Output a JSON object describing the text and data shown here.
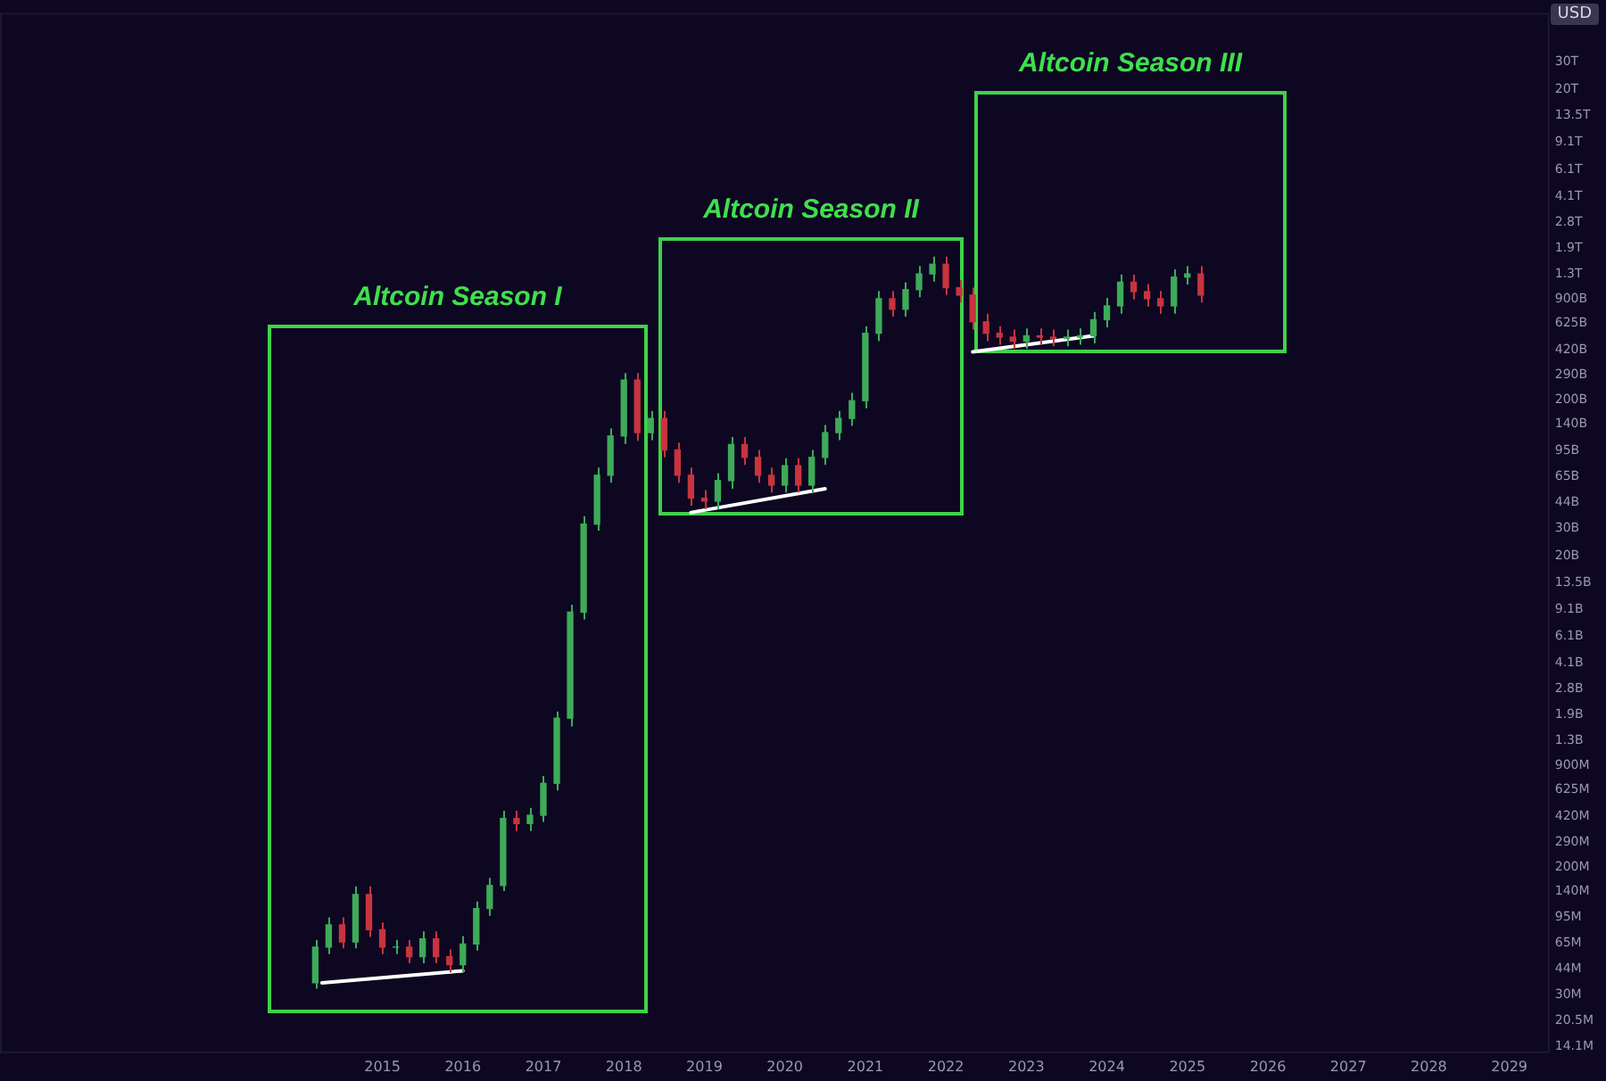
{
  "chart_data": {
    "type": "candlestick",
    "ylabel": "USD",
    "log": "y",
    "x": [
      "2014-03",
      "2014-05",
      "2014-07",
      "2014-09",
      "2014-11",
      "2015-01",
      "2015-03",
      "2015-05",
      "2015-07",
      "2015-09",
      "2015-11",
      "2016-01",
      "2016-03",
      "2016-05",
      "2016-07",
      "2016-09",
      "2016-11",
      "2017-01",
      "2017-03",
      "2017-05",
      "2017-07",
      "2017-09",
      "2017-11",
      "2018-01",
      "2018-03",
      "2018-05",
      "2018-07",
      "2018-09",
      "2018-11",
      "2019-01",
      "2019-03",
      "2019-05",
      "2019-07",
      "2019-09",
      "2019-11",
      "2020-01",
      "2020-03",
      "2020-05",
      "2020-07",
      "2020-09",
      "2020-11",
      "2021-01",
      "2021-03",
      "2021-05",
      "2021-07",
      "2021-09",
      "2021-11",
      "2022-01",
      "2022-03",
      "2022-05",
      "2022-07",
      "2022-09",
      "2022-11",
      "2023-01",
      "2023-03",
      "2023-05",
      "2023-07",
      "2023-09",
      "2023-11",
      "2024-01",
      "2024-03",
      "2024-05",
      "2024-07",
      "2024-09",
      "2024-11",
      "2025-01",
      "2025-03"
    ],
    "ohlc": [
      [
        36000000.0,
        68000000.0,
        33000000.0,
        61000000.0
      ],
      [
        61000000.0,
        95000000.0,
        55000000.0,
        85000000.0
      ],
      [
        85000000.0,
        95000000.0,
        60000000.0,
        66000000.0
      ],
      [
        66000000.0,
        150000000.0,
        60000000.0,
        133000000.0
      ],
      [
        133000000.0,
        150000000.0,
        71000000.0,
        79000000.0
      ],
      [
        79000000.0,
        88000000.0,
        55000000.0,
        61000000.0
      ],
      [
        61000000.0,
        68000000.0,
        55000000.0,
        61000000.0
      ],
      [
        61000000.0,
        68000000.0,
        48000000.0,
        53000000.0
      ],
      [
        53000000.0,
        77000000.0,
        48000000.0,
        69000000.0
      ],
      [
        69000000.0,
        77000000.0,
        48000000.0,
        53000000.0
      ],
      [
        53000000.0,
        59000000.0,
        42000000.0,
        47000000.0
      ],
      [
        47000000.0,
        72000000.0,
        42000000.0,
        64000000.0
      ],
      [
        64000000.0,
        120000000.0,
        58000000.0,
        108000000.0
      ],
      [
        108000000.0,
        170000000.0,
        97000000.0,
        152000000.0
      ],
      [
        152000000.0,
        460000000.0,
        140000000.0,
        410000000.0
      ],
      [
        410000000.0,
        460000000.0,
        340000000.0,
        380000000.0
      ],
      [
        380000000.0,
        480000000.0,
        340000000.0,
        430000000.0
      ],
      [
        430000000.0,
        770000000.0,
        390000000.0,
        690000000.0
      ],
      [
        690000000.0,
        2000000000.0,
        620000000.0,
        1810000000.0
      ],
      [
        1810000000.0,
        9700000000.0,
        1600000000.0,
        8700000000.0
      ],
      [
        8700000000.0,
        36000000000.0,
        7800000000.0,
        32000000000.0
      ],
      [
        32000000000.0,
        74000000000.0,
        29000000000.0,
        66000000000.0
      ],
      [
        66000000000.0,
        132000000000.0,
        59000000000.0,
        118000000000.0
      ],
      [
        118000000000.0,
        300000000000.0,
        105000000000.0,
        270000000000.0
      ],
      [
        270000000000.0,
        300000000000.0,
        110000000000.0,
        124000000000.0
      ],
      [
        124000000000.0,
        171000000000.0,
        111000000000.0,
        153000000000.0
      ],
      [
        153000000000.0,
        171000000000.0,
        86000000000.0,
        96000000000.0
      ],
      [
        96000000000.0,
        107000000000.0,
        59000000000.0,
        66000000000.0
      ],
      [
        66000000000.0,
        74000000000.0,
        42000000000.0,
        47000000000.0
      ],
      [
        47000000000.0,
        53000000000.0,
        40000000000.0,
        45000000000.0
      ],
      [
        45000000000.0,
        68000000000.0,
        40000000000.0,
        61000000000.0
      ],
      [
        61000000000.0,
        116000000000.0,
        54000000000.0,
        104000000000.0
      ],
      [
        104000000000.0,
        116000000000.0,
        77000000000.0,
        86000000000.0
      ],
      [
        86000000000.0,
        96000000000.0,
        59000000000.0,
        66000000000.0
      ],
      [
        66000000000.0,
        74000000000.0,
        51000000000.0,
        57000000000.0
      ],
      [
        57000000000.0,
        85000000000.0,
        51000000000.0,
        76000000000.0
      ],
      [
        76000000000.0,
        85000000000.0,
        51000000000.0,
        57000000000.0
      ],
      [
        57000000000.0,
        96000000000.0,
        51000000000.0,
        86000000000.0
      ],
      [
        86000000000.0,
        139000000000.0,
        77000000000.0,
        124000000000.0
      ],
      [
        124000000000.0,
        171000000000.0,
        111000000000.0,
        153000000000.0
      ],
      [
        153000000000.0,
        223000000000.0,
        137000000000.0,
        199000000000.0
      ],
      [
        199000000000.0,
        600000000000.0,
        178000000000.0,
        540000000000.0
      ],
      [
        540000000000.0,
        1010000000000.0,
        480000000000.0,
        900000000000.0
      ],
      [
        900000000000.0,
        1010000000000.0,
        690000000000.0,
        770000000000.0
      ],
      [
        770000000000.0,
        1150000000000.0,
        690000000000.0,
        1030000000000.0
      ],
      [
        1030000000000.0,
        1460000000000.0,
        920000000000.0,
        1300000000000.0
      ],
      [
        1300000000000.0,
        1680000000000.0,
        1160000000000.0,
        1500000000000.0
      ],
      [
        1500000000000.0,
        1680000000000.0,
        950000000000.0,
        1060000000000.0
      ],
      [
        1060000000000.0,
        1190000000000.0,
        850000000000.0,
        950000000000.0
      ],
      [
        950000000000.0,
        1060000000000.0,
        570000000000.0,
        640000000000.0
      ],
      [
        640000000000.0,
        720000000000.0,
        480000000000.0,
        540000000000.0
      ],
      [
        540000000000.0,
        600000000000.0,
        455000000000.0,
        510000000000.0
      ],
      [
        510000000000.0,
        570000000000.0,
        430000000000.0,
        480000000000.0
      ],
      [
        480000000000.0,
        580000000000.0,
        430000000000.0,
        520000000000.0
      ],
      [
        520000000000.0,
        580000000000.0,
        455000000000.0,
        510000000000.0
      ],
      [
        510000000000.0,
        570000000000.0,
        445000000000.0,
        500000000000.0
      ],
      [
        500000000000.0,
        570000000000.0,
        445000000000.0,
        510000000000.0
      ],
      [
        510000000000.0,
        580000000000.0,
        455000000000.0,
        520000000000.0
      ],
      [
        520000000000.0,
        740000000000.0,
        465000000000.0,
        660000000000.0
      ],
      [
        660000000000.0,
        910000000000.0,
        590000000000.0,
        810000000000.0
      ],
      [
        810000000000.0,
        1290000000000.0,
        720000000000.0,
        1150000000000.0
      ],
      [
        1150000000000.0,
        1290000000000.0,
        890000000000.0,
        1000000000000.0
      ],
      [
        1000000000000.0,
        1120000000000.0,
        800000000000.0,
        900000000000.0
      ],
      [
        900000000000.0,
        1010000000000.0,
        720000000000.0,
        810000000000.0
      ],
      [
        810000000000.0,
        1390000000000.0,
        720000000000.0,
        1240000000000.0
      ],
      [
        1240000000000.0,
        1460000000000.0,
        1110000000000.0,
        1300000000000.0
      ],
      [
        1300000000000.0,
        1460000000000.0,
        850000000000.0,
        950000000000.0
      ]
    ],
    "series": [
      {
        "type": "line",
        "color": "#ffffff",
        "x": [
          "2014-04",
          "2016-01"
        ],
        "values": [
          36000000.0,
          43000000.0
        ]
      },
      {
        "type": "line",
        "color": "#ffffff",
        "x": [
          "2018-11",
          "2020-07"
        ],
        "values": [
          38000000000.0,
          54000000000.0
        ]
      },
      {
        "type": "line",
        "color": "#ffffff",
        "x": [
          "2022-05",
          "2023-11"
        ],
        "values": [
          410000000000.0,
          520000000000.0
        ]
      }
    ],
    "annotations": [
      "Altcoin Season I",
      "Altcoin Season II",
      "Altcoin Season III"
    ],
    "xlim": [
      "2010-04",
      "2029-07"
    ],
    "xticks": [
      "2015",
      "2016",
      "2017",
      "2018",
      "2019",
      "2020",
      "2021",
      "2022",
      "2023",
      "2024",
      "2025",
      "2026",
      "2027",
      "2028",
      "2029"
    ],
    "ylim": [
      12700000.0,
      62000000000000.0
    ],
    "yticks": [
      {
        "value": 14100000.0,
        "label": "14.1M"
      },
      {
        "value": 20500000.0,
        "label": "20.5M"
      },
      {
        "value": 30000000.0,
        "label": "30M"
      },
      {
        "value": 44000000.0,
        "label": "44M"
      },
      {
        "value": 65000000.0,
        "label": "65M"
      },
      {
        "value": 95000000.0,
        "label": "95M"
      },
      {
        "value": 140000000.0,
        "label": "140M"
      },
      {
        "value": 200000000.0,
        "label": "200M"
      },
      {
        "value": 290000000.0,
        "label": "290M"
      },
      {
        "value": 420000000.0,
        "label": "420M"
      },
      {
        "value": 625000000.0,
        "label": "625M"
      },
      {
        "value": 900000000.0,
        "label": "900M"
      },
      {
        "value": 1300000000.0,
        "label": "1.3B"
      },
      {
        "value": 1900000000.0,
        "label": "1.9B"
      },
      {
        "value": 2800000000.0,
        "label": "2.8B"
      },
      {
        "value": 4100000000.0,
        "label": "4.1B"
      },
      {
        "value": 6100000000.0,
        "label": "6.1B"
      },
      {
        "value": 9100000000.0,
        "label": "9.1B"
      },
      {
        "value": 13500000000.0,
        "label": "13.5B"
      },
      {
        "value": 20000000000.0,
        "label": "20B"
      },
      {
        "value": 30000000000.0,
        "label": "30B"
      },
      {
        "value": 44000000000.0,
        "label": "44B"
      },
      {
        "value": 65000000000.0,
        "label": "65B"
      },
      {
        "value": 95000000000.0,
        "label": "95B"
      },
      {
        "value": 140000000000.0,
        "label": "140B"
      },
      {
        "value": 200000000000.0,
        "label": "200B"
      },
      {
        "value": 290000000000.0,
        "label": "290B"
      },
      {
        "value": 420000000000.0,
        "label": "420B"
      },
      {
        "value": 625000000000.0,
        "label": "625B"
      },
      {
        "value": 900000000000.0,
        "label": "900B"
      },
      {
        "value": 1300000000000.0,
        "label": "1.3T"
      },
      {
        "value": 1900000000000.0,
        "label": "1.9T"
      },
      {
        "value": 2800000000000.0,
        "label": "2.8T"
      },
      {
        "value": 4100000000000.0,
        "label": "4.1T"
      },
      {
        "value": 6100000000000.0,
        "label": "6.1T"
      },
      {
        "value": 9100000000000.0,
        "label": "9.1T"
      },
      {
        "value": 13500000000000.0,
        "label": "13.5T"
      },
      {
        "value": 20000000000000.0,
        "label": "20T"
      },
      {
        "value": 30000000000000.0,
        "label": "30T"
      }
    ]
  }
}
